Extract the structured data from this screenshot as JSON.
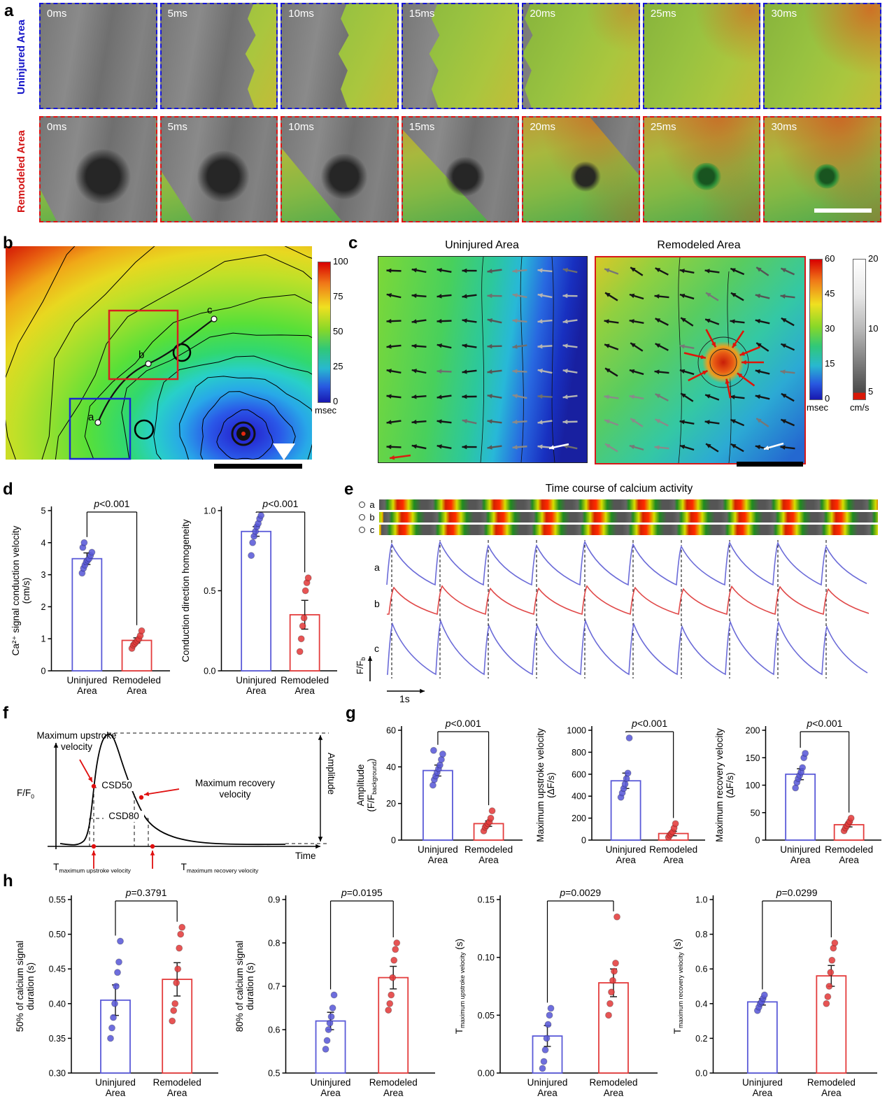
{
  "labels": {
    "a": "a",
    "b": "b",
    "c": "c",
    "d": "d",
    "e": "e",
    "f": "f",
    "g": "g",
    "h": "h"
  },
  "colors": {
    "uninjured": "#5a5ad8",
    "remodeled": "#e43c3c",
    "uninjured_text": "#1515c8",
    "remodeled_text": "#d41414"
  },
  "panel_a": {
    "row1_label": "Uninjured Area",
    "row2_label": "Remodeled Area",
    "timestamps": [
      "0ms",
      "5ms",
      "10ms",
      "15ms",
      "20ms",
      "25ms",
      "30ms"
    ]
  },
  "panel_b": {
    "colorbar": {
      "ticks": [
        "100",
        "75",
        "50",
        "25",
        "0"
      ],
      "unit": "msec"
    },
    "points": [
      "a",
      "b",
      "c"
    ]
  },
  "panel_c": {
    "title_left": "Uninjured Area",
    "title_right": "Remodeled Area",
    "colorbar_msec": {
      "ticks": [
        "60",
        "45",
        "30",
        "15",
        "0"
      ],
      "unit": "msec"
    },
    "colorbar_cms": {
      "ticks": [
        "20",
        "10",
        "5"
      ],
      "unit": "cm/s"
    }
  },
  "panel_e": {
    "title": "Time course of calcium activity",
    "strip_labels": [
      "a",
      "b",
      "c"
    ],
    "trace_labels": [
      "a",
      "b",
      "c"
    ],
    "y_axis_main": "F/F",
    "y_axis_sub": "b",
    "x_scale": "1s"
  },
  "panel_f": {
    "upstroke_l1": "Maximum upstroke",
    "upstroke_l2": "velocity",
    "recovery_l1": "Maximum recovery",
    "recovery_l2": "velocity",
    "csd50": "CSD50",
    "csd80": "CSD80",
    "amplitude": "Amplitude",
    "y_axis_main": "F/F",
    "y_axis_sub": "0",
    "x_axis": "Time",
    "t_main": "T",
    "t_upstroke_sub": "maximum upstroke velocity",
    "t_recovery_sub": "maximum recovery velocity"
  },
  "chart_data": [
    {
      "id": "d1",
      "type": "bar",
      "categories": [
        [
          "Uninjured",
          "Area"
        ],
        [
          "Remodeled",
          "Area"
        ]
      ],
      "values": [
        3.5,
        0.95
      ],
      "errors": [
        0.18,
        0.08
      ],
      "points": [
        [
          3.05,
          3.2,
          3.3,
          3.4,
          3.45,
          3.5,
          3.6,
          3.7,
          3.85,
          4.0
        ],
        [
          0.7,
          0.8,
          0.85,
          0.9,
          0.95,
          1.0,
          1.1,
          1.25
        ]
      ],
      "ylim": [
        0,
        5
      ],
      "yticks": [
        0,
        1,
        2,
        3,
        4,
        5
      ],
      "ytick_labels": [
        "0",
        "1",
        "2",
        "3",
        "4",
        "5"
      ],
      "ylabel_lines": [
        [
          {
            "t": "Ca²⁺ signal conduction velocity"
          }
        ],
        [
          {
            "t": "(cm/s)"
          }
        ]
      ],
      "p_prefix": "p",
      "p_value": "<0.001"
    },
    {
      "id": "d2",
      "type": "bar",
      "categories": [
        [
          "Uninjured",
          "Area"
        ],
        [
          "Remodeled",
          "Area"
        ]
      ],
      "values": [
        0.87,
        0.35
      ],
      "errors": [
        0.03,
        0.09
      ],
      "points": [
        [
          0.72,
          0.8,
          0.84,
          0.87,
          0.9,
          0.92,
          0.95,
          0.97
        ],
        [
          0.12,
          0.2,
          0.28,
          0.33,
          0.5,
          0.55,
          0.58
        ]
      ],
      "ylim": [
        0,
        1
      ],
      "yticks": [
        0,
        0.5,
        1
      ],
      "ytick_labels": [
        "0.0",
        "0.5",
        "1.0"
      ],
      "ylabel_lines": [
        [
          {
            "t": "Conduction direction homogeneity"
          }
        ]
      ],
      "p_prefix": "p",
      "p_value": "<0.001"
    },
    {
      "id": "g1",
      "type": "bar",
      "categories": [
        [
          "Uninjured",
          "Area"
        ],
        [
          "Remodeled",
          "Area"
        ]
      ],
      "values": [
        38,
        9
      ],
      "errors": [
        3,
        1.5
      ],
      "points": [
        [
          30,
          33,
          35,
          37,
          39,
          41,
          44,
          47,
          49
        ],
        [
          5,
          7,
          8,
          9,
          10,
          12,
          16
        ]
      ],
      "ylim": [
        0,
        60
      ],
      "yticks": [
        0,
        20,
        40,
        60
      ],
      "ytick_labels": [
        "0",
        "20",
        "40",
        "60"
      ],
      "ylabel_lines": [
        [
          {
            "t": "Amplitude"
          }
        ],
        [
          {
            "t": "(F/F"
          },
          {
            "t": "background",
            "sub": true
          },
          {
            "t": ")"
          }
        ]
      ],
      "p_prefix": "p",
      "p_value": "<0.001"
    },
    {
      "id": "g2",
      "type": "bar",
      "categories": [
        [
          "Uninjured",
          "Area"
        ],
        [
          "Remodeled",
          "Area"
        ]
      ],
      "values": [
        540,
        60
      ],
      "errors": [
        70,
        20
      ],
      "points": [
        [
          390,
          430,
          470,
          510,
          560,
          610,
          930
        ],
        [
          25,
          45,
          60,
          75,
          110,
          150
        ]
      ],
      "ylim": [
        0,
        1000
      ],
      "yticks": [
        0,
        200,
        400,
        600,
        800,
        1000
      ],
      "ytick_labels": [
        "0",
        "200",
        "400",
        "600",
        "800",
        "1000"
      ],
      "ylabel_lines": [
        [
          {
            "t": "Maximum upstroke velocity"
          }
        ],
        [
          {
            "t": "(ΔF/s)"
          }
        ]
      ],
      "p_prefix": "p",
      "p_value": "<0.001"
    },
    {
      "id": "g3",
      "type": "bar",
      "categories": [
        [
          "Uninjured",
          "Area"
        ],
        [
          "Remodeled",
          "Area"
        ]
      ],
      "values": [
        120,
        28
      ],
      "errors": [
        10,
        4
      ],
      "points": [
        [
          95,
          105,
          112,
          118,
          124,
          132,
          150,
          158
        ],
        [
          17,
          22,
          26,
          30,
          34,
          40
        ]
      ],
      "ylim": [
        0,
        200
      ],
      "yticks": [
        0,
        50,
        100,
        150,
        200
      ],
      "ytick_labels": [
        "0",
        "50",
        "100",
        "150",
        "200"
      ],
      "ylabel_lines": [
        [
          {
            "t": "Maximum recovery velocity"
          }
        ],
        [
          {
            "t": "(ΔF/s)"
          }
        ]
      ],
      "p_prefix": "p",
      "p_value": "<0.001"
    },
    {
      "id": "h1",
      "type": "bar",
      "categories": [
        [
          "Uninjured",
          "Area"
        ],
        [
          "Remodeled",
          "Area"
        ]
      ],
      "values": [
        0.405,
        0.435
      ],
      "errors": [
        0.022,
        0.024
      ],
      "points": [
        [
          0.35,
          0.365,
          0.38,
          0.4,
          0.425,
          0.445,
          0.46,
          0.49
        ],
        [
          0.375,
          0.39,
          0.4,
          0.43,
          0.45,
          0.48,
          0.5,
          0.51
        ]
      ],
      "ylim": [
        0.3,
        0.55
      ],
      "yticks": [
        0.3,
        0.35,
        0.4,
        0.45,
        0.5,
        0.55
      ],
      "ytick_labels": [
        "0.30",
        "0.35",
        "0.40",
        "0.45",
        "0.50",
        "0.55"
      ],
      "ylabel_lines": [
        [
          {
            "t": "50% of calcium signal"
          }
        ],
        [
          {
            "t": "duration (s)"
          }
        ]
      ],
      "p_prefix": "p",
      "p_value": "=0.3791"
    },
    {
      "id": "h2",
      "type": "bar",
      "categories": [
        [
          "Uninjured",
          "Area"
        ],
        [
          "Remodeled",
          "Area"
        ]
      ],
      "values": [
        0.62,
        0.72
      ],
      "errors": [
        0.02,
        0.026
      ],
      "points": [
        [
          0.555,
          0.575,
          0.6,
          0.615,
          0.63,
          0.65,
          0.68
        ],
        [
          0.645,
          0.66,
          0.68,
          0.72,
          0.76,
          0.785,
          0.8
        ]
      ],
      "ylim": [
        0.5,
        0.9
      ],
      "yticks": [
        0.5,
        0.6,
        0.7,
        0.8,
        0.9
      ],
      "ytick_labels": [
        "0.5",
        "0.6",
        "0.7",
        "0.8",
        "0.9"
      ],
      "ylabel_lines": [
        [
          {
            "t": "80% of calcium signal"
          }
        ],
        [
          {
            "t": "duration (s)"
          }
        ]
      ],
      "p_prefix": "p",
      "p_value": "=0.0195"
    },
    {
      "id": "h3",
      "type": "bar",
      "categories": [
        [
          "Uninjured",
          "Area"
        ],
        [
          "Remodeled",
          "Area"
        ]
      ],
      "values": [
        0.032,
        0.078
      ],
      "errors": [
        0.009,
        0.012
      ],
      "points": [
        [
          0.004,
          0.01,
          0.02,
          0.03,
          0.042,
          0.05,
          0.056
        ],
        [
          0.05,
          0.06,
          0.07,
          0.08,
          0.088,
          0.095,
          0.135
        ]
      ],
      "ylim": [
        0,
        0.15
      ],
      "yticks": [
        0,
        0.05,
        0.1,
        0.15
      ],
      "ytick_labels": [
        "0.00",
        "0.05",
        "0.10",
        "0.15"
      ],
      "ylabel_lines": [
        [
          {
            "t": "T"
          },
          {
            "t": "maximum upstroke velocity",
            "sub": true
          },
          {
            "t": " (s)"
          }
        ]
      ],
      "p_prefix": "p",
      "p_value": "=0.0029"
    },
    {
      "id": "h4",
      "type": "bar",
      "categories": [
        [
          "Uninjured",
          "Area"
        ],
        [
          "Remodeled",
          "Area"
        ]
      ],
      "values": [
        0.41,
        0.56
      ],
      "errors": [
        0.018,
        0.06
      ],
      "points": [
        [
          0.36,
          0.38,
          0.4,
          0.41,
          0.43,
          0.45
        ],
        [
          0.4,
          0.44,
          0.5,
          0.58,
          0.65,
          0.72,
          0.75
        ]
      ],
      "ylim": [
        0,
        1
      ],
      "yticks": [
        0,
        0.2,
        0.4,
        0.6,
        0.8,
        1
      ],
      "ytick_labels": [
        "0.0",
        "0.2",
        "0.4",
        "0.6",
        "0.8",
        "1.0"
      ],
      "ylabel_lines": [
        [
          {
            "t": "T"
          },
          {
            "t": "maximum recovery velocity",
            "sub": true
          },
          {
            "t": " (s)"
          }
        ]
      ],
      "p_prefix": "p",
      "p_value": "=0.0299"
    }
  ]
}
